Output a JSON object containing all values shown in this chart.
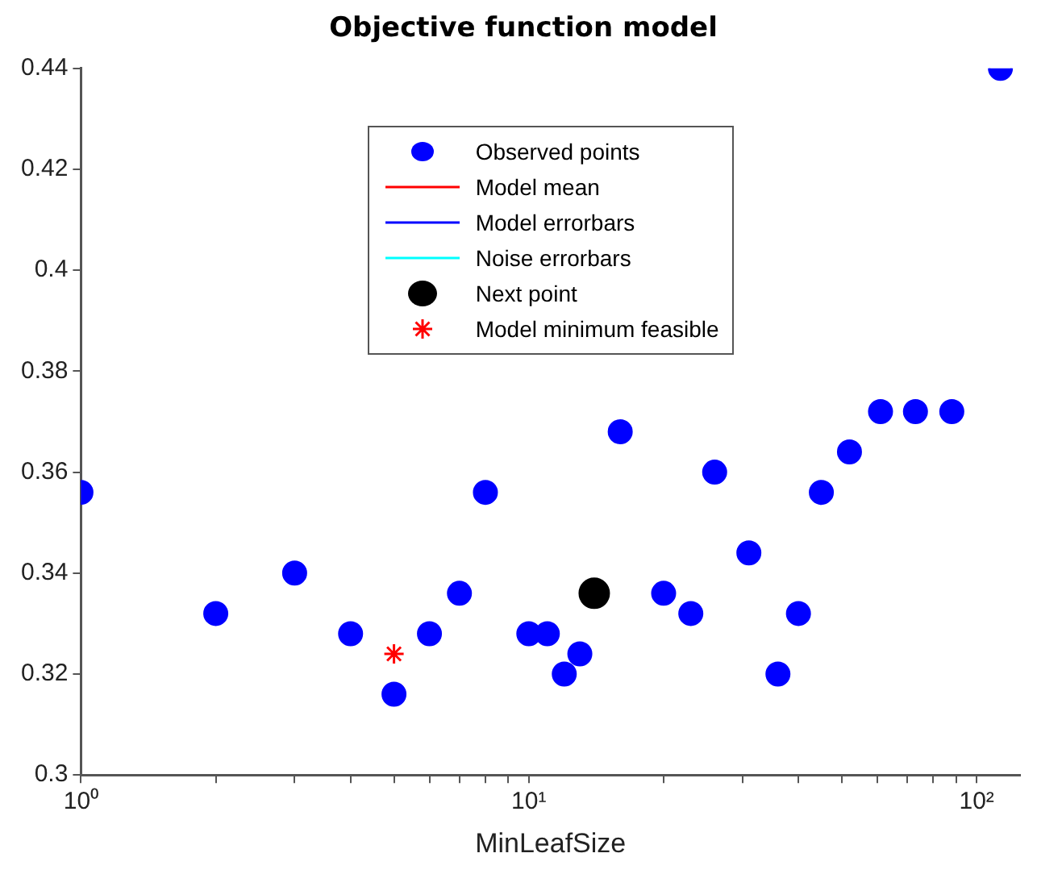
{
  "chart_data": {
    "type": "scatter",
    "title": "Objective function model",
    "xlabel": "MinLeafSize",
    "log": "x",
    "grid": false,
    "legend": "top",
    "xlim": [
      1,
      125
    ],
    "ylim": [
      0.3,
      0.44
    ],
    "xticks": [
      {
        "value": 1,
        "label": "10⁰"
      },
      {
        "value": 2,
        "label": null
      },
      {
        "value": 3,
        "label": null
      },
      {
        "value": 4,
        "label": null
      },
      {
        "value": 5,
        "label": null
      },
      {
        "value": 6,
        "label": null
      },
      {
        "value": 7,
        "label": null
      },
      {
        "value": 8,
        "label": null
      },
      {
        "value": 9,
        "label": null
      },
      {
        "value": 10,
        "label": "10¹"
      },
      {
        "value": 20,
        "label": null
      },
      {
        "value": 30,
        "label": null
      },
      {
        "value": 40,
        "label": null
      },
      {
        "value": 50,
        "label": null
      },
      {
        "value": 60,
        "label": null
      },
      {
        "value": 70,
        "label": null
      },
      {
        "value": 80,
        "label": null
      },
      {
        "value": 90,
        "label": null
      },
      {
        "value": 100,
        "label": "10²"
      }
    ],
    "yticks": [
      0.3,
      0.32,
      0.34,
      0.36,
      0.38,
      0.4,
      0.42,
      0.44
    ],
    "series": [
      {
        "name": "Observed points",
        "marker": "circle",
        "color": "#0000ff",
        "x": [
          1,
          2,
          3,
          4,
          5,
          6,
          7,
          8,
          10,
          11,
          12,
          13,
          16,
          20,
          23,
          26,
          31,
          36,
          40,
          45,
          52,
          61,
          73,
          88,
          113
        ],
        "values": [
          0.356,
          0.332,
          0.34,
          0.328,
          0.316,
          0.328,
          0.336,
          0.356,
          0.328,
          0.328,
          0.32,
          0.324,
          0.368,
          0.336,
          0.332,
          0.36,
          0.344,
          0.32,
          0.332,
          0.356,
          0.364,
          0.372,
          0.372,
          0.372,
          0.44
        ]
      },
      {
        "name": "Model mean",
        "type": "line",
        "color": "#ff0000"
      },
      {
        "name": "Model errorbars",
        "type": "line",
        "color": "#0000ff"
      },
      {
        "name": "Noise errorbars",
        "type": "line",
        "color": "#00ffff"
      },
      {
        "name": "Next point",
        "marker": "circle",
        "color": "#000000",
        "x": [
          14
        ],
        "values": [
          0.336
        ]
      },
      {
        "name": "Model minimum feasible",
        "marker": "cross",
        "color": "#ff0000",
        "x": [
          5
        ],
        "values": [
          0.324
        ]
      }
    ]
  }
}
